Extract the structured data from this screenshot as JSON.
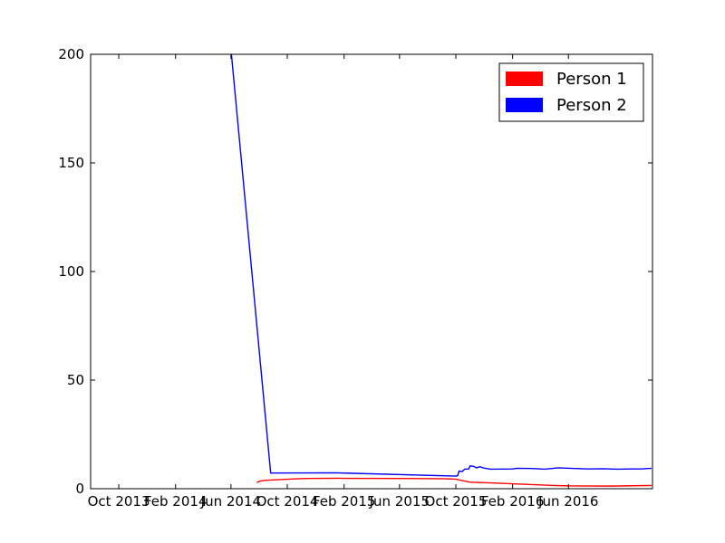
{
  "chart_data": {
    "type": "line",
    "title": "",
    "xlabel": "",
    "ylabel": "",
    "ylim": [
      0,
      200
    ],
    "xlim": [
      "2013-08-01",
      "2016-11-30"
    ],
    "yticks": [
      0,
      50,
      100,
      150,
      200
    ],
    "xticks": [
      {
        "date": "2013-10-01",
        "label": "Oct 2013"
      },
      {
        "date": "2014-02-01",
        "label": "Feb 2014"
      },
      {
        "date": "2014-06-01",
        "label": "Jun 2014"
      },
      {
        "date": "2014-10-01",
        "label": "Oct 2014"
      },
      {
        "date": "2015-02-01",
        "label": "Feb 2015"
      },
      {
        "date": "2015-06-01",
        "label": "Jun 2015"
      },
      {
        "date": "2015-10-01",
        "label": "Oct 2015"
      },
      {
        "date": "2016-02-01",
        "label": "Feb 2016"
      },
      {
        "date": "2016-06-01",
        "label": "Jun 2016"
      }
    ],
    "grid": false,
    "legend_position": "top-right",
    "series": [
      {
        "name": "Person 1",
        "color": "#ff0000",
        "points": [
          {
            "x": "2014-07-27",
            "y": 2.8
          },
          {
            "x": "2014-08-03",
            "y": 3.5
          },
          {
            "x": "2014-08-15",
            "y": 3.9
          },
          {
            "x": "2014-09-15",
            "y": 4.2
          },
          {
            "x": "2014-10-15",
            "y": 4.5
          },
          {
            "x": "2014-11-15",
            "y": 4.7
          },
          {
            "x": "2015-01-15",
            "y": 4.8
          },
          {
            "x": "2015-06-01",
            "y": 4.7
          },
          {
            "x": "2015-09-01",
            "y": 4.6
          },
          {
            "x": "2015-10-01",
            "y": 4.4
          },
          {
            "x": "2015-10-20",
            "y": 3.5
          },
          {
            "x": "2015-11-01",
            "y": 3.0
          },
          {
            "x": "2015-12-15",
            "y": 2.7
          },
          {
            "x": "2016-03-01",
            "y": 2.0
          },
          {
            "x": "2016-05-01",
            "y": 1.5
          },
          {
            "x": "2016-06-01",
            "y": 1.3
          },
          {
            "x": "2016-09-01",
            "y": 1.2
          },
          {
            "x": "2016-10-01",
            "y": 1.3
          },
          {
            "x": "2016-11-28",
            "y": 1.5
          }
        ]
      },
      {
        "name": "Person 2",
        "color": "#0000ff",
        "points": [
          {
            "x": "2014-06-02",
            "y": 200
          },
          {
            "x": "2014-08-26",
            "y": 7.2
          },
          {
            "x": "2015-01-15",
            "y": 7.3
          },
          {
            "x": "2015-10-01",
            "y": 5.8
          },
          {
            "x": "2015-10-05",
            "y": 6.0
          },
          {
            "x": "2015-10-08",
            "y": 8.1
          },
          {
            "x": "2015-10-15",
            "y": 7.9
          },
          {
            "x": "2015-10-20",
            "y": 9.0
          },
          {
            "x": "2015-10-29",
            "y": 9.1
          },
          {
            "x": "2015-11-01",
            "y": 10.5
          },
          {
            "x": "2015-11-10",
            "y": 10.2
          },
          {
            "x": "2015-11-15",
            "y": 9.6
          },
          {
            "x": "2015-11-22",
            "y": 10.1
          },
          {
            "x": "2015-12-01",
            "y": 9.5
          },
          {
            "x": "2015-12-15",
            "y": 9.0
          },
          {
            "x": "2016-02-01",
            "y": 9.1
          },
          {
            "x": "2016-02-10",
            "y": 9.4
          },
          {
            "x": "2016-03-15",
            "y": 9.3
          },
          {
            "x": "2016-04-10",
            "y": 9.0
          },
          {
            "x": "2016-05-10",
            "y": 9.6
          },
          {
            "x": "2016-06-15",
            "y": 9.3
          },
          {
            "x": "2016-07-15",
            "y": 9.1
          },
          {
            "x": "2016-08-15",
            "y": 9.2
          },
          {
            "x": "2016-09-15",
            "y": 9.0
          },
          {
            "x": "2016-10-15",
            "y": 9.1
          },
          {
            "x": "2016-11-05",
            "y": 9.1
          },
          {
            "x": "2016-11-28",
            "y": 9.4
          }
        ]
      }
    ]
  }
}
